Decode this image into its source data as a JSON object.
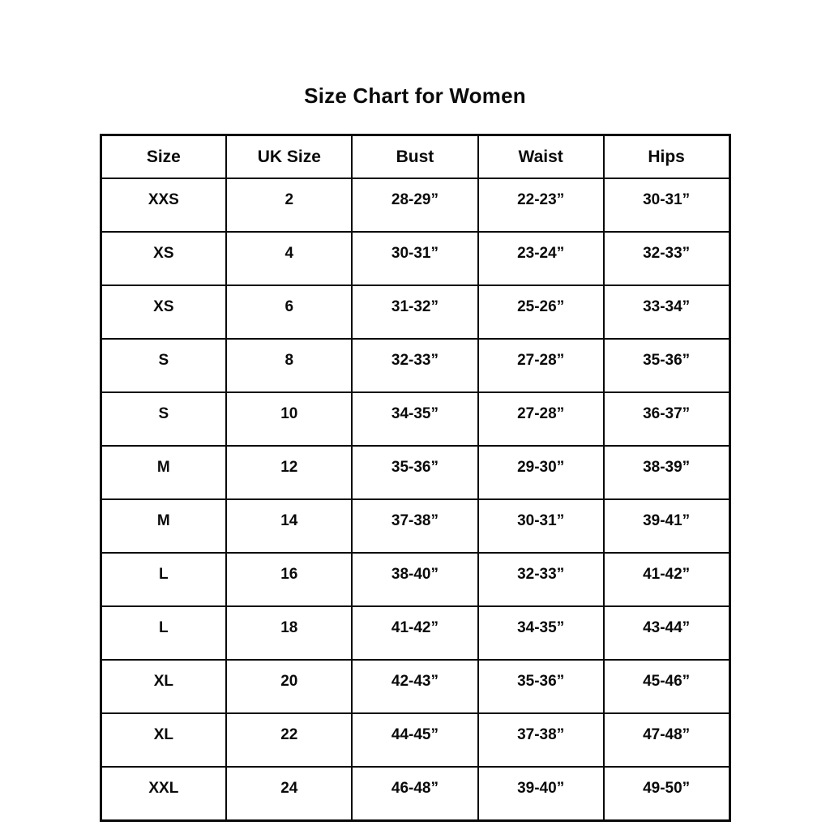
{
  "page": {
    "title": "Size Chart for Women"
  },
  "chart_data": {
    "type": "table",
    "title": "Size Chart for Women",
    "columns": [
      "Size",
      "UK Size",
      "Bust",
      "Waist",
      "Hips"
    ],
    "rows": [
      [
        "XXS",
        "2",
        "28-29”",
        "22-23”",
        "30-31”"
      ],
      [
        "XS",
        "4",
        "30-31”",
        "23-24”",
        "32-33”"
      ],
      [
        "XS",
        "6",
        "31-32”",
        "25-26”",
        "33-34”"
      ],
      [
        "S",
        "8",
        "32-33”",
        "27-28”",
        "35-36”"
      ],
      [
        "S",
        "10",
        "34-35”",
        "27-28”",
        "36-37”"
      ],
      [
        "M",
        "12",
        "35-36”",
        "29-30”",
        "38-39”"
      ],
      [
        "M",
        "14",
        "37-38”",
        "30-31”",
        "39-41”"
      ],
      [
        "L",
        "16",
        "38-40”",
        "32-33”",
        "41-42”"
      ],
      [
        "L",
        "18",
        "41-42”",
        "34-35”",
        "43-44”"
      ],
      [
        "XL",
        "20",
        "42-43”",
        "35-36”",
        "45-46”"
      ],
      [
        "XL",
        "22",
        "44-45”",
        "37-38”",
        "47-48”"
      ],
      [
        "XXL",
        "24",
        "46-48”",
        "39-40”",
        "49-50”"
      ]
    ],
    "text_color": "#0a0a0a",
    "border_color": "#0a0a0a",
    "background_color": "#ffffff"
  }
}
